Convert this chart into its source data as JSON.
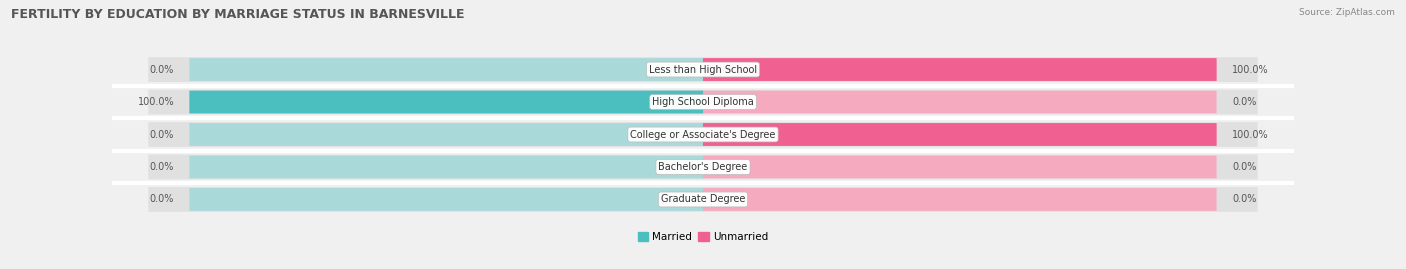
{
  "title": "FERTILITY BY EDUCATION BY MARRIAGE STATUS IN BARNESVILLE",
  "source": "Source: ZipAtlas.com",
  "categories": [
    "Less than High School",
    "High School Diploma",
    "College or Associate's Degree",
    "Bachelor's Degree",
    "Graduate Degree"
  ],
  "married_pct": [
    0.0,
    100.0,
    0.0,
    0.0,
    0.0
  ],
  "unmarried_pct": [
    100.0,
    0.0,
    100.0,
    0.0,
    0.0
  ],
  "married_color": "#4bbfbf",
  "unmarried_color": "#f06090",
  "married_light": "#aad9d9",
  "unmarried_light": "#f5aac0",
  "background_color": "#f0f0f0",
  "row_bg_color": "#e0e0e0",
  "title_fontsize": 9,
  "label_fontsize": 7,
  "cat_fontsize": 7,
  "bar_height": 0.72,
  "legend_married": "Married",
  "legend_unmarried": "Unmarried"
}
